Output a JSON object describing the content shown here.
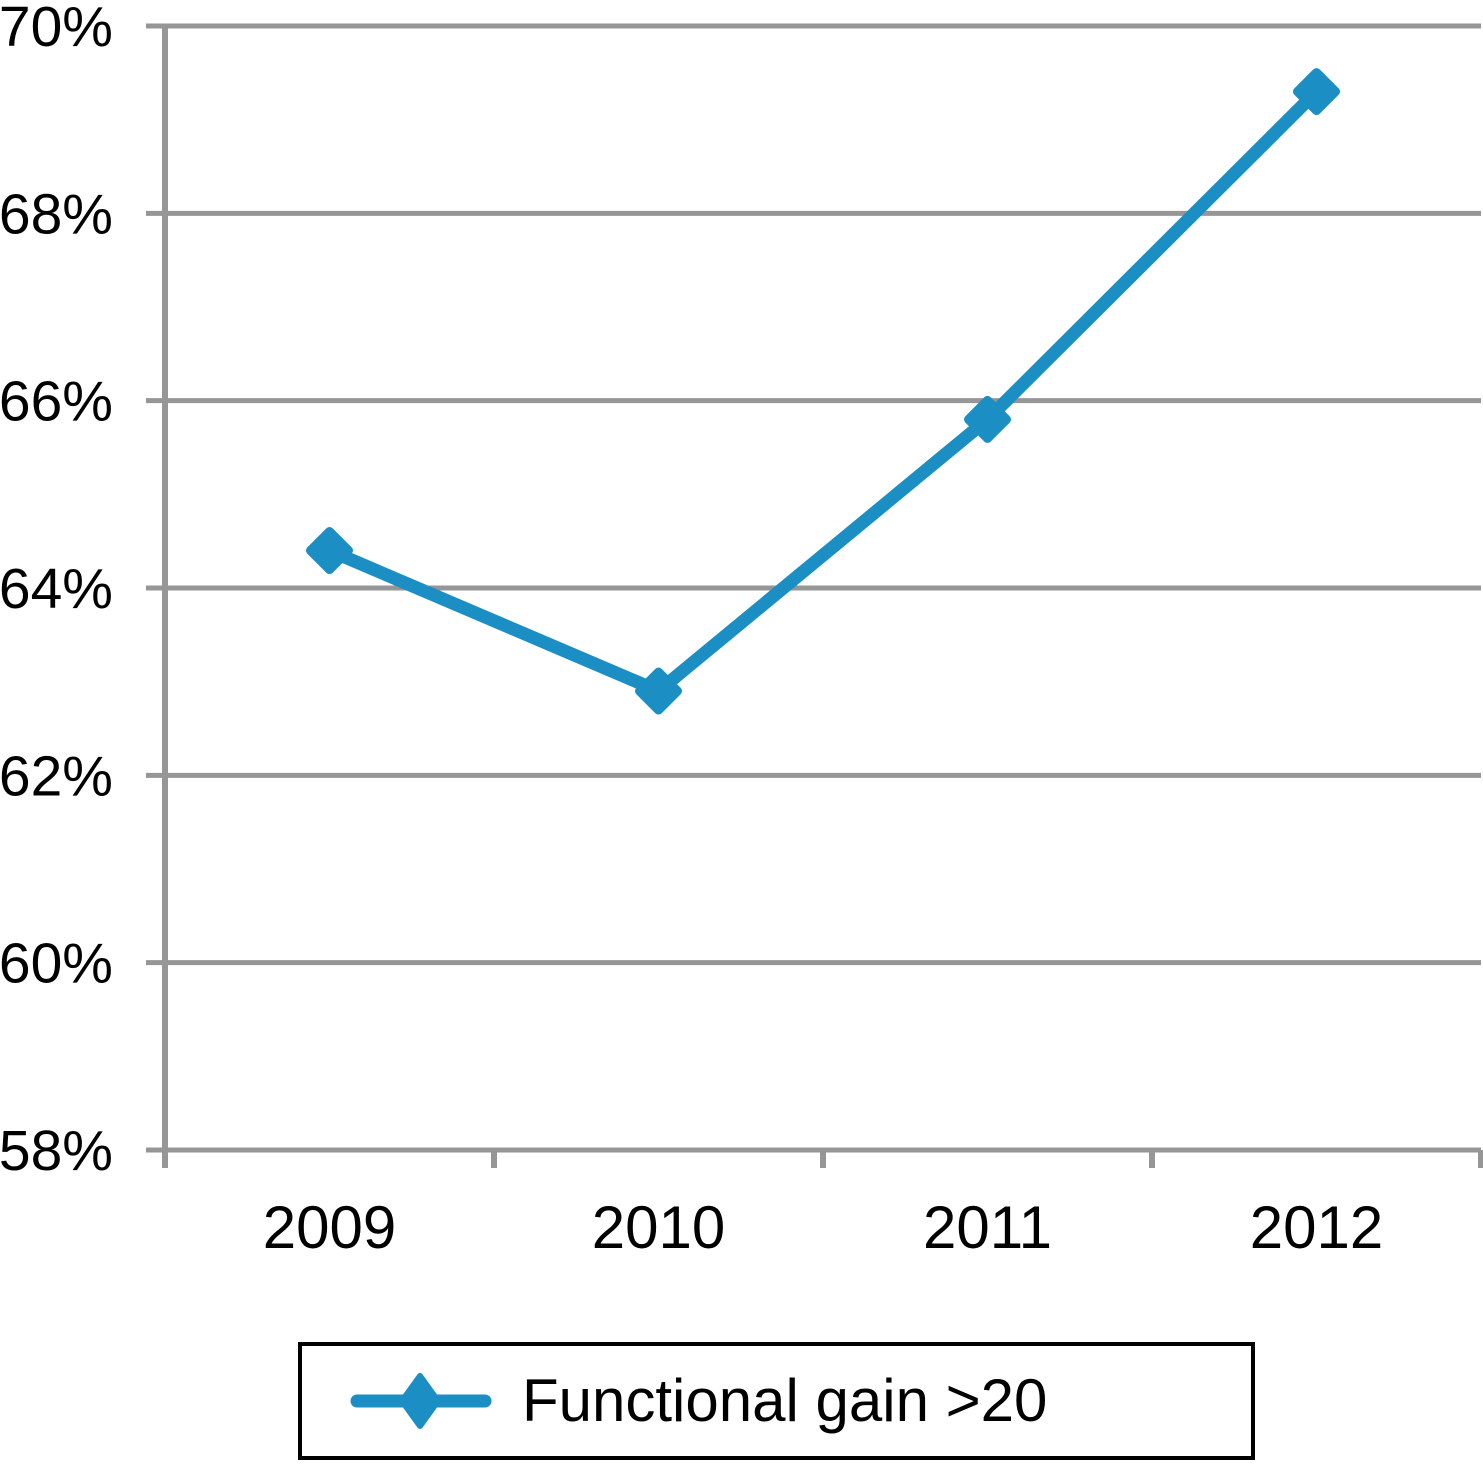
{
  "chart_data": {
    "type": "line",
    "title": "",
    "xlabel": "",
    "ylabel": "",
    "categories": [
      "2009",
      "2010",
      "2011",
      "2012"
    ],
    "series": [
      {
        "name": "Functional gain >20",
        "values": [
          64.4,
          62.9,
          65.8,
          69.3
        ],
        "color": "#1b8fc4",
        "marker": "diamond"
      }
    ],
    "ylim": [
      58,
      70
    ],
    "ytick_step": 2,
    "ytick_labels": [
      "58%",
      "60%",
      "62%",
      "64%",
      "66%",
      "68%",
      "70%"
    ],
    "grid": "horizontal",
    "gridline_color": "#969696",
    "axis_color": "#969696",
    "text_color": "#000000",
    "legend_position": "bottom",
    "legend_border_color": "#000000",
    "background_color": "#ffffff"
  }
}
